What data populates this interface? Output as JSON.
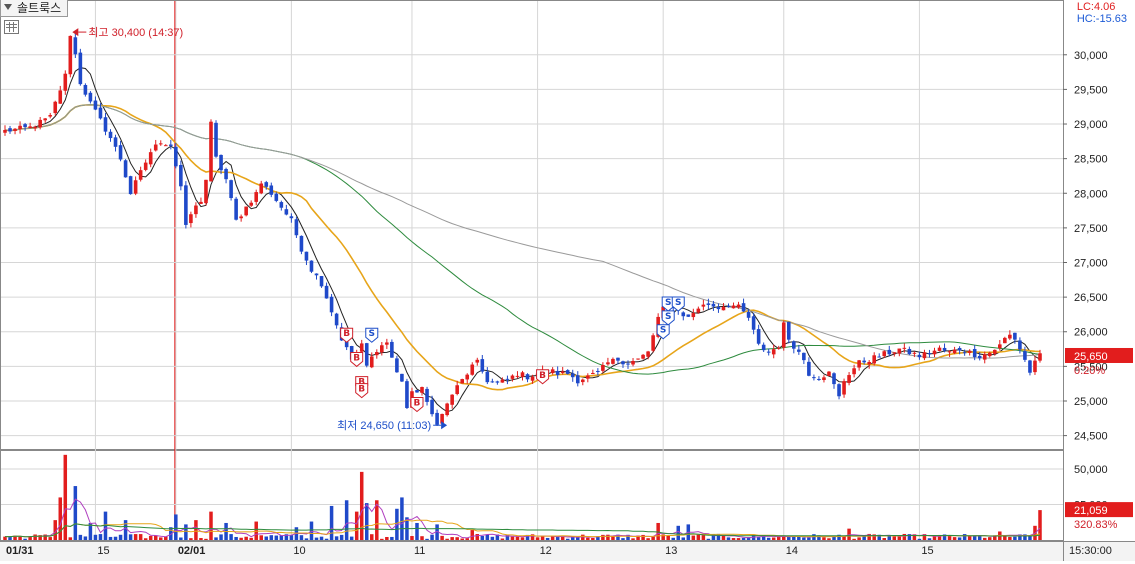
{
  "header": {
    "tab_label": "솔트룩스",
    "lc_label": "LC:4.06",
    "hc_label": "HC:-15.63"
  },
  "colors": {
    "up": "#e21d1d",
    "down": "#1f49c9",
    "ma5": "#222222",
    "ma20": "#e7a51a",
    "ma60": "#2e8b3e",
    "ma120": "#9a9a9a",
    "price_box": "#e21d1d",
    "grid": "#d6d6d6"
  },
  "chart_data": {
    "type": "candlestick",
    "price_axis": {
      "ticks": [
        "30,000",
        "29,500",
        "29,000",
        "28,500",
        "28,000",
        "27,500",
        "27,000",
        "26,500",
        "26,000",
        "25,500",
        "25,000",
        "24,500"
      ],
      "ylim": [
        24350,
        30560
      ]
    },
    "volume_axis": {
      "ticks": [
        "50,000",
        "25,000"
      ],
      "ylim": [
        0,
        62000
      ]
    },
    "x_axis": {
      "labels": [
        "01/31",
        "15",
        "02/01",
        "10",
        "11",
        "12",
        "13",
        "14",
        "15"
      ],
      "time_label": "15:30:00"
    },
    "date_separator": "02/01",
    "price_anchors": [
      [
        0,
        28900
      ],
      [
        5,
        28950
      ],
      [
        9,
        29100
      ],
      [
        12,
        29700
      ],
      [
        13,
        30300
      ],
      [
        14,
        30000
      ],
      [
        15,
        29600
      ],
      [
        17,
        29300
      ],
      [
        19,
        29050
      ],
      [
        21,
        28800
      ],
      [
        23,
        28500
      ],
      [
        25,
        28000
      ],
      [
        27,
        28300
      ],
      [
        29,
        28600
      ],
      [
        31,
        28750
      ],
      [
        33,
        28700
      ],
      [
        35,
        28100
      ],
      [
        36,
        27500
      ],
      [
        37,
        27700
      ],
      [
        39,
        27900
      ],
      [
        40,
        28200
      ],
      [
        41,
        29000
      ],
      [
        42,
        28500
      ],
      [
        44,
        28200
      ],
      [
        46,
        27600
      ],
      [
        48,
        27800
      ],
      [
        50,
        28000
      ],
      [
        51,
        28150
      ],
      [
        53,
        28000
      ],
      [
        55,
        27800
      ],
      [
        57,
        27600
      ],
      [
        59,
        27200
      ],
      [
        61,
        26900
      ],
      [
        63,
        26700
      ],
      [
        65,
        26300
      ],
      [
        67,
        25900
      ],
      [
        69,
        25600
      ],
      [
        71,
        25800
      ],
      [
        72,
        25500
      ],
      [
        74,
        25750
      ],
      [
        76,
        25850
      ],
      [
        78,
        25400
      ],
      [
        79,
        25300
      ],
      [
        80,
        24900
      ],
      [
        81,
        25100
      ],
      [
        83,
        25200
      ],
      [
        84,
        24950
      ],
      [
        85,
        24800
      ],
      [
        86,
        24700
      ],
      [
        87,
        24800
      ],
      [
        89,
        25100
      ],
      [
        91,
        25300
      ],
      [
        93,
        25500
      ],
      [
        94,
        25550
      ],
      [
        96,
        25300
      ],
      [
        98,
        25250
      ],
      [
        100,
        25300
      ],
      [
        102,
        25400
      ],
      [
        104,
        25350
      ],
      [
        106,
        25400
      ],
      [
        108,
        25450
      ],
      [
        110,
        25400
      ],
      [
        112,
        25400
      ],
      [
        114,
        25300
      ],
      [
        116,
        25350
      ],
      [
        118,
        25400
      ],
      [
        120,
        25550
      ],
      [
        122,
        25600
      ],
      [
        124,
        25550
      ],
      [
        126,
        25600
      ],
      [
        128,
        25700
      ],
      [
        130,
        26200
      ],
      [
        132,
        26450
      ],
      [
        134,
        26300
      ],
      [
        136,
        26200
      ],
      [
        138,
        26350
      ],
      [
        140,
        26400
      ],
      [
        142,
        26350
      ],
      [
        144,
        26400
      ],
      [
        146,
        26350
      ],
      [
        148,
        26200
      ],
      [
        150,
        25800
      ],
      [
        152,
        25700
      ],
      [
        153,
        25750
      ],
      [
        154,
        25800
      ],
      [
        155,
        26100
      ],
      [
        156,
        25900
      ],
      [
        157,
        25800
      ],
      [
        159,
        25600
      ],
      [
        160,
        25400
      ],
      [
        162,
        25350
      ],
      [
        164,
        25400
      ],
      [
        166,
        25050
      ],
      [
        167,
        25300
      ],
      [
        168,
        25400
      ],
      [
        170,
        25550
      ],
      [
        172,
        25600
      ],
      [
        174,
        25650
      ],
      [
        176,
        25700
      ],
      [
        178,
        25750
      ],
      [
        180,
        25700
      ],
      [
        182,
        25650
      ],
      [
        184,
        25700
      ],
      [
        186,
        25750
      ],
      [
        188,
        25700
      ],
      [
        190,
        25750
      ],
      [
        192,
        25700
      ],
      [
        194,
        25650
      ],
      [
        196,
        25700
      ],
      [
        198,
        25800
      ],
      [
        199,
        25900
      ],
      [
        200,
        25950
      ],
      [
        201,
        25900
      ],
      [
        202,
        25750
      ],
      [
        203,
        25600
      ],
      [
        204,
        25400
      ],
      [
        205,
        25600
      ],
      [
        206,
        25650
      ]
    ],
    "markers": [
      {
        "type": "B",
        "index": 68,
        "price": 25950
      },
      {
        "type": "B",
        "index": 70,
        "price": 25600
      },
      {
        "type": "S",
        "index": 73,
        "price": 25950
      },
      {
        "type": "B",
        "index": 71,
        "price": 25250
      },
      {
        "type": "B",
        "index": 71,
        "price": 25150
      },
      {
        "type": "B",
        "index": 82,
        "price": 24950
      },
      {
        "type": "B",
        "index": 107,
        "price": 25350
      },
      {
        "type": "S",
        "index": 132,
        "price": 26400
      },
      {
        "type": "S",
        "index": 134,
        "price": 26400
      },
      {
        "type": "S",
        "index": 132,
        "price": 26200
      },
      {
        "type": "S",
        "index": 131,
        "price": 26000
      }
    ],
    "high": {
      "label": "최고 30,400 (14:37)",
      "index": 13,
      "price": 30400
    },
    "low": {
      "label": "최저 24,650 (11:03)",
      "index": 88,
      "price": 24650
    },
    "current_price": {
      "value": 25650,
      "label": "25,650",
      "change": "0.20%"
    },
    "current_volume": {
      "label": "21,059",
      "change": "320.83%"
    },
    "volume_spikes": [
      [
        12,
        60000
      ],
      [
        11,
        30000
      ],
      [
        14,
        38000
      ],
      [
        10,
        14000
      ],
      [
        17,
        12000
      ],
      [
        20,
        20000
      ],
      [
        24,
        14000
      ],
      [
        33,
        9000
      ],
      [
        34,
        18000
      ],
      [
        36,
        11000
      ],
      [
        38,
        14000
      ],
      [
        41,
        20000
      ],
      [
        44,
        12000
      ],
      [
        50,
        13000
      ],
      [
        58,
        9000
      ],
      [
        61,
        13000
      ],
      [
        65,
        24000
      ],
      [
        68,
        28000
      ],
      [
        70,
        20000
      ],
      [
        71,
        48000
      ],
      [
        72,
        26000
      ],
      [
        74,
        28000
      ],
      [
        78,
        22000
      ],
      [
        79,
        30000
      ],
      [
        80,
        16000
      ],
      [
        82,
        12000
      ],
      [
        86,
        11000
      ],
      [
        93,
        7000
      ],
      [
        130,
        12000
      ],
      [
        134,
        10000
      ],
      [
        136,
        11000
      ],
      [
        168,
        8000
      ],
      [
        198,
        6000
      ],
      [
        205,
        10000
      ],
      [
        206,
        21059
      ]
    ]
  }
}
